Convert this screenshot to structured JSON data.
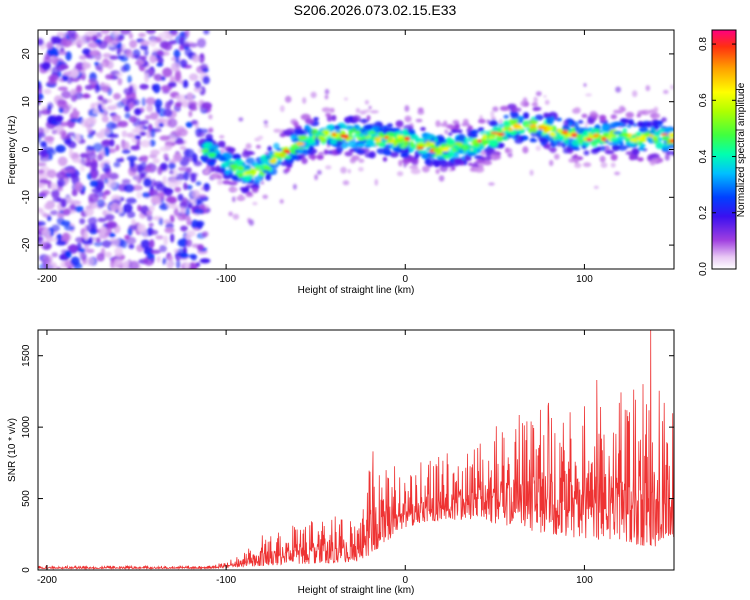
{
  "title": "S206.2026.073.02.15.E33",
  "chart_data": [
    {
      "type": "heatmap",
      "name": "spectrogram",
      "xlabel": "Height of straight line (km)",
      "ylabel": "Frequency (Hz)",
      "xlim": [
        -205,
        150
      ],
      "ylim": [
        -25,
        25
      ],
      "xticks": [
        -200,
        -100,
        0,
        100
      ],
      "yticks": [
        -20,
        -10,
        0,
        10,
        20
      ],
      "ridge": {
        "x": [
          -110,
          -100,
          -90,
          -80,
          -70,
          -60,
          -50,
          -40,
          -30,
          -20,
          -10,
          0,
          10,
          20,
          30,
          40,
          50,
          60,
          70,
          80,
          90,
          100,
          110,
          120,
          130,
          140,
          150
        ],
        "freq": [
          0,
          -3,
          -5,
          -4,
          -1,
          1,
          3,
          3,
          3,
          2.5,
          2,
          2,
          1,
          0,
          0.5,
          1,
          3,
          5,
          5,
          4,
          3,
          2.5,
          2.5,
          3,
          2.5,
          2.5,
          2.5
        ]
      },
      "colorbar": {
        "label": "Normalized spectral amplitude",
        "range": [
          0,
          0.85
        ],
        "ticks": [
          "0.0",
          "0.2",
          "0.4",
          "0.6",
          "0.8"
        ]
      }
    },
    {
      "type": "line",
      "name": "snr",
      "xlabel": "Height of straight line (km)",
      "ylabel": "SNR (10 * v/v)",
      "xlim": [
        -205,
        150
      ],
      "ylim": [
        0,
        1680
      ],
      "xticks": [
        -200,
        -100,
        0,
        100
      ],
      "yticks": [
        0,
        500,
        1000,
        1500
      ],
      "color": "#ee3333",
      "envelope": {
        "x": [
          -205,
          -110,
          -100,
          -90,
          -80,
          -60,
          -40,
          -25,
          -20,
          -10,
          0,
          20,
          40,
          60,
          80,
          100,
          120,
          140,
          150
        ],
        "low": [
          10,
          10,
          15,
          20,
          30,
          40,
          50,
          60,
          100,
          200,
          300,
          350,
          350,
          300,
          250,
          220,
          200,
          150,
          200
        ],
        "high": [
          30,
          30,
          60,
          120,
          250,
          330,
          380,
          350,
          850,
          800,
          720,
          800,
          900,
          1100,
          1150,
          1200,
          1250,
          1350,
          1100
        ]
      },
      "peaks": [
        {
          "x": 137,
          "y": 1680
        },
        {
          "x": 107,
          "y": 1330
        },
        {
          "x": -18,
          "y": 830
        },
        {
          "x": 80,
          "y": 1170
        }
      ]
    }
  ]
}
